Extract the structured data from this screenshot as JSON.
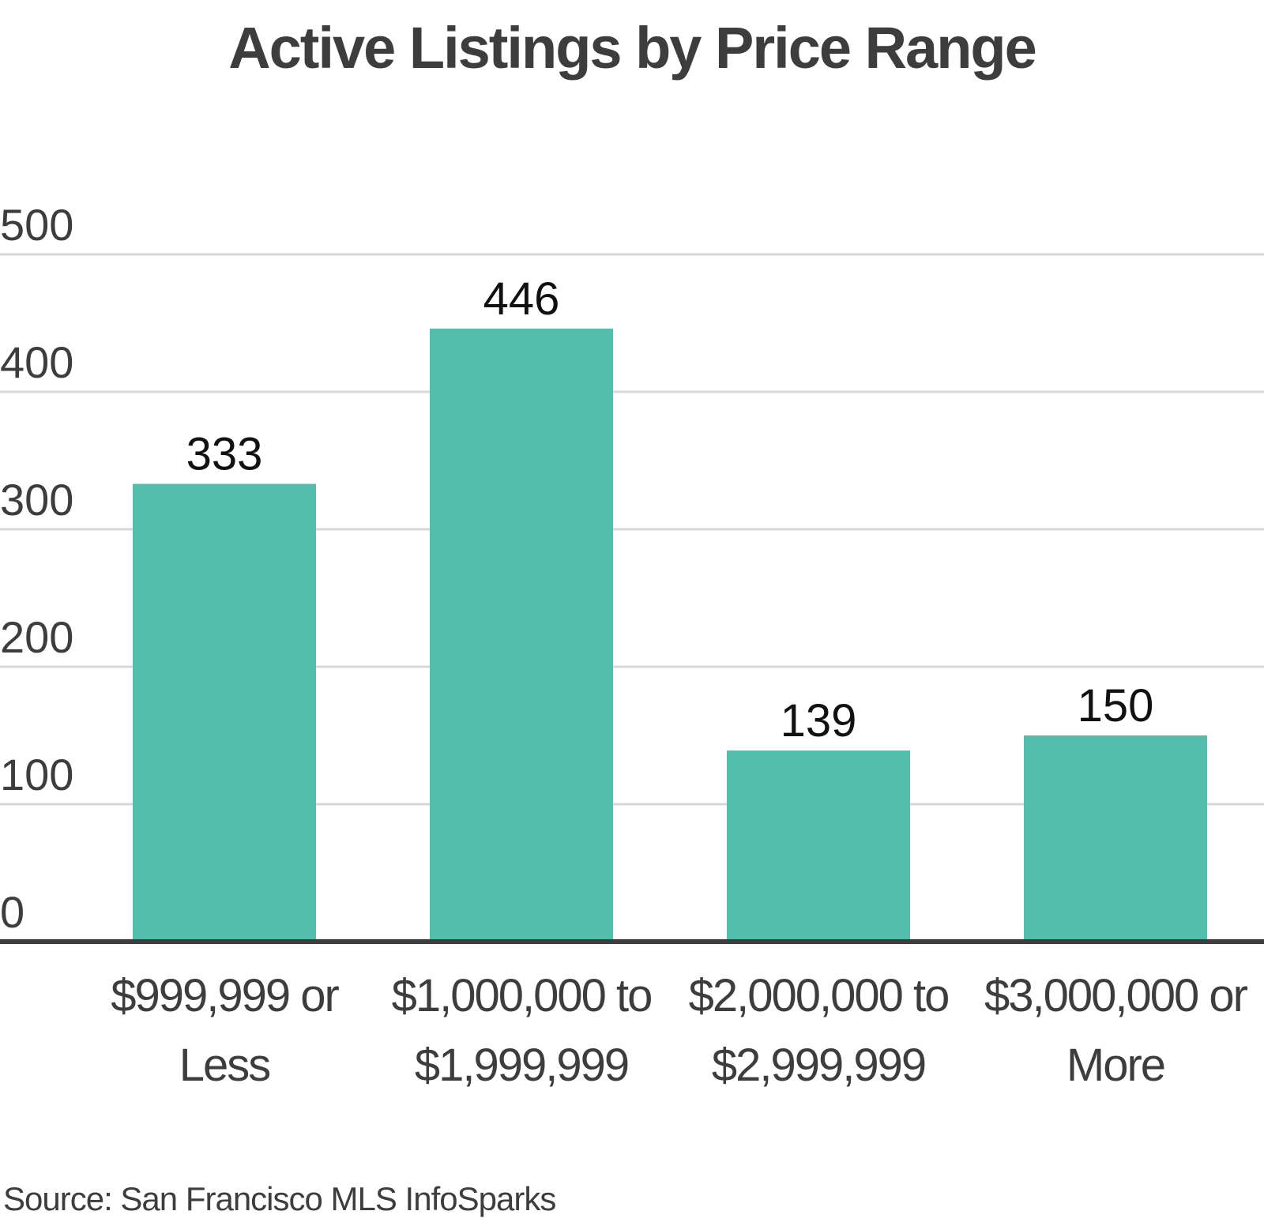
{
  "chart_data": {
    "type": "bar",
    "title": "Active Listings by Price Range",
    "categories": [
      [
        "$999,999 or",
        "Less"
      ],
      [
        "$1,000,000 to",
        "$1,999,999"
      ],
      [
        "$2,000,000 to",
        "$2,999,999"
      ],
      [
        "$3,000,000 or",
        "More"
      ]
    ],
    "values": [
      333,
      446,
      139,
      150
    ],
    "ylim": [
      0,
      500
    ],
    "yticks": [
      0,
      100,
      200,
      300,
      400,
      500
    ],
    "grid": true,
    "bar_color": "#52bdaa",
    "gridline_color": "#d9d9d9",
    "axis_color": "#3d3d3d",
    "text_color": "#3d3d3d",
    "data_label_color": "#111111"
  },
  "source": "Source:  San Francisco MLS InfoSparks"
}
